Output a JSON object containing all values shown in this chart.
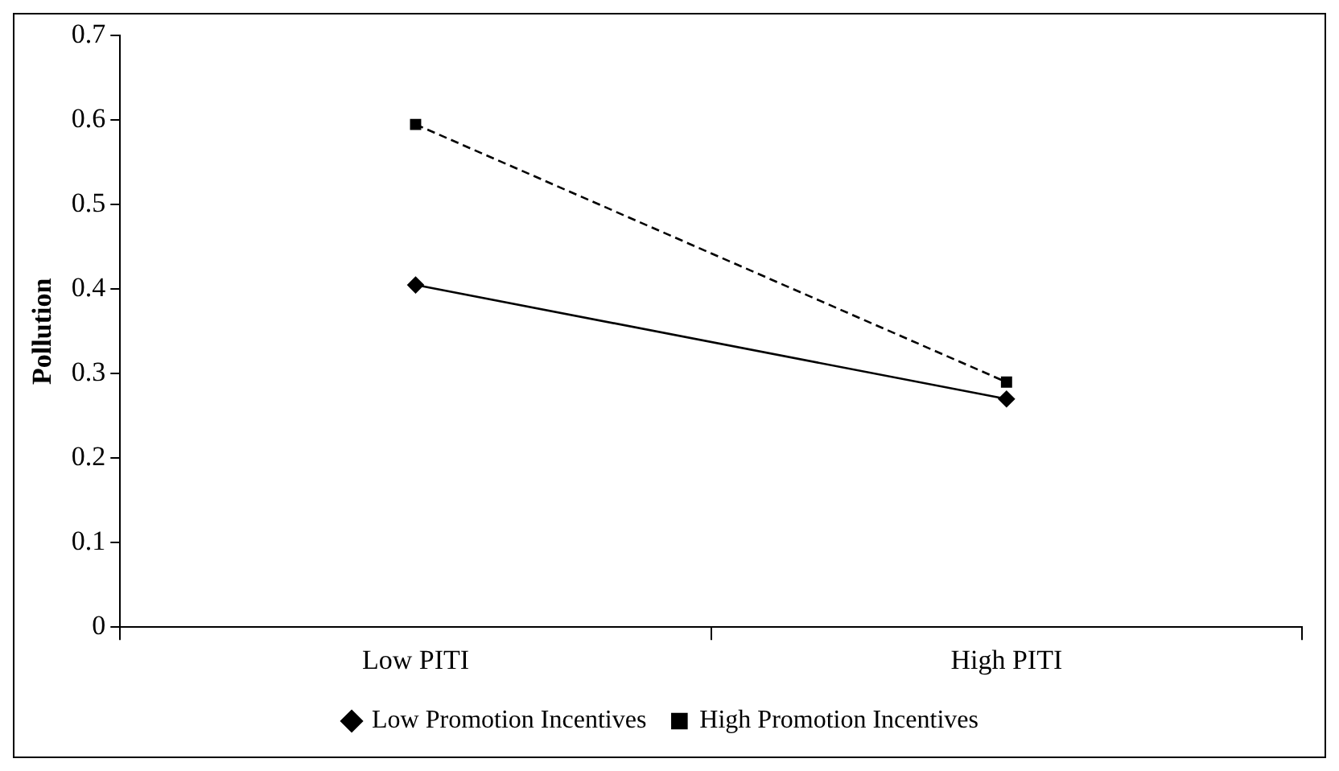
{
  "chart_data": {
    "type": "line",
    "ylabel": "Pollution",
    "categories": [
      "Low PITI",
      "High PITI"
    ],
    "series": [
      {
        "name": "Low Promotion Incentives",
        "color": "#000000",
        "values": [
          0.405,
          0.27
        ],
        "marker": "diamond",
        "line_style": "solid"
      },
      {
        "name": "High Promotion Incentives",
        "color": "#000000",
        "values": [
          0.595,
          0.29
        ],
        "marker": "square",
        "line_style": "dashed"
      }
    ],
    "ylim": [
      0,
      0.7
    ],
    "yticks": [
      0,
      0.1,
      0.2,
      0.3,
      0.4,
      0.5,
      0.6,
      0.7
    ],
    "legend": "bottom"
  }
}
